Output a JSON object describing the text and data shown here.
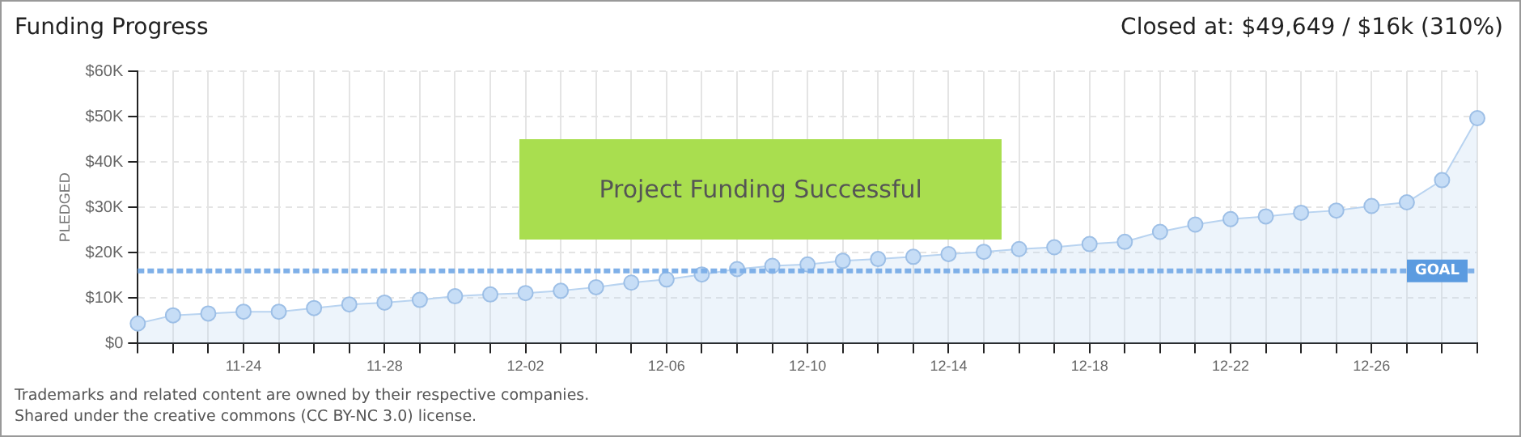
{
  "chart_data": {
    "type": "area",
    "title": "Funding Progress",
    "ylabel": "PLEDGED",
    "categories": [
      null,
      null,
      null,
      "11-24",
      null,
      null,
      null,
      "11-28",
      null,
      null,
      null,
      "12-02",
      null,
      null,
      null,
      "12-06",
      null,
      null,
      null,
      "12-10",
      null,
      null,
      null,
      "12-14",
      null,
      null,
      null,
      "12-18",
      null,
      null,
      null,
      "12-22",
      null,
      null,
      null,
      "12-26",
      null,
      null,
      null
    ],
    "series": [
      {
        "color": "#b8d3f0",
        "values": [
          4400,
          6200,
          6600,
          7000,
          7000,
          7800,
          8600,
          9000,
          9600,
          10400,
          10800,
          11100,
          11600,
          12400,
          13400,
          14100,
          15200,
          16400,
          17100,
          17400,
          18200,
          18600,
          19100,
          19700,
          20200,
          20800,
          21200,
          21900,
          22400,
          24600,
          26200,
          27400,
          28000,
          28800,
          29300,
          30300,
          31100,
          36000,
          49649
        ]
      }
    ],
    "ylim": [
      0,
      60000
    ],
    "yticks": [
      {
        "value": 0,
        "label": "$0"
      },
      {
        "value": 10000,
        "label": "$10K"
      },
      {
        "value": 20000,
        "label": "$20K"
      },
      {
        "value": 30000,
        "label": "$30K"
      },
      {
        "value": 40000,
        "label": "$40K"
      },
      {
        "value": 50000,
        "label": "$50K"
      },
      {
        "value": 60000,
        "label": "$60K"
      }
    ],
    "grid": true,
    "marker": "circle",
    "line_style": "solid",
    "legend": false,
    "ref_lines": [
      {
        "axis": "y",
        "value": 16000,
        "label": "GOAL",
        "color": "#7fb0e8",
        "line_style": "dashed"
      }
    ],
    "annotations": [
      "Closed at: $49,649 / $16k (310%)",
      "Project Funding Successful",
      "Trademarks and related content are owned by their respective companies.",
      "Shared under the creative commons (CC BY-NC 3.0) license."
    ]
  }
}
